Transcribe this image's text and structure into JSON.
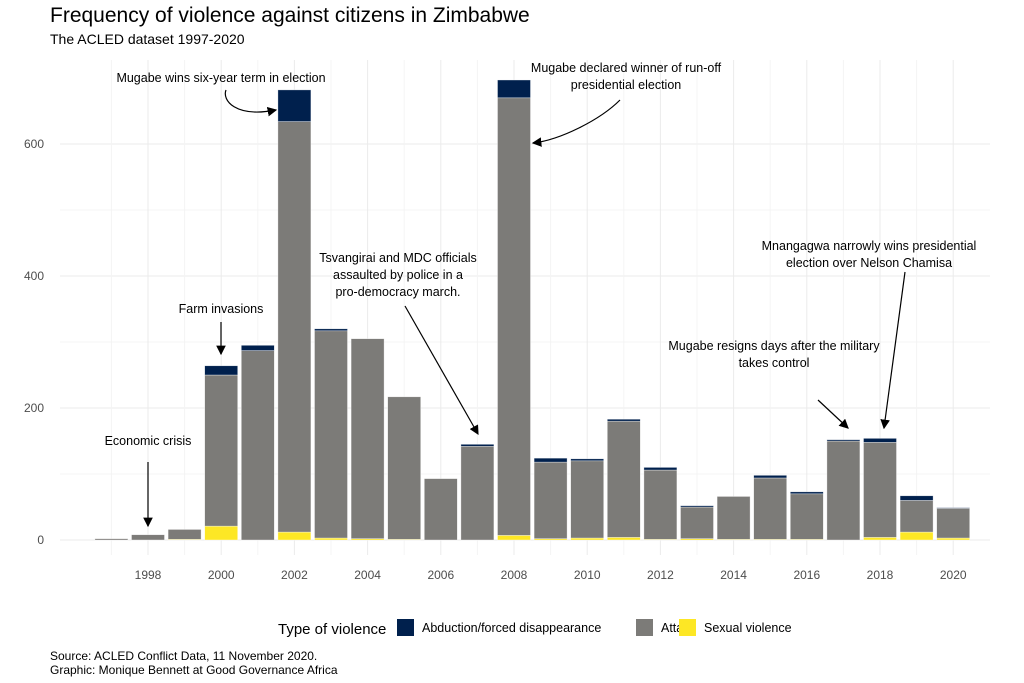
{
  "chart_data": {
    "type": "bar",
    "stacked": true,
    "title": "Frequency of violence against citizens in Zimbabwe",
    "subtitle": "The ACLED dataset 1997-2020",
    "xlabel": "",
    "ylabel": "",
    "x": [
      1997,
      1998,
      1999,
      2000,
      2001,
      2002,
      2003,
      2004,
      2005,
      2006,
      2007,
      2008,
      2009,
      2010,
      2011,
      2012,
      2013,
      2014,
      2015,
      2016,
      2017,
      2018,
      2019,
      2020
    ],
    "x_ticks": [
      "1998",
      "2000",
      "2002",
      "2004",
      "2006",
      "2008",
      "2010",
      "2012",
      "2014",
      "2016",
      "2018",
      "2020"
    ],
    "y_ticks": [
      "0",
      "200",
      "400",
      "600"
    ],
    "ylim": [
      0,
      700
    ],
    "grid": true,
    "legend_title": "Type of violence",
    "legend_position": "bottom",
    "series": [
      {
        "name": "Sexual violence",
        "color": "#FDE725",
        "values": [
          0,
          0,
          1,
          21,
          0,
          12,
          3,
          2,
          1,
          0,
          0,
          7,
          2,
          3,
          4,
          1,
          2,
          1,
          1,
          1,
          0,
          4,
          12,
          3
        ]
      },
      {
        "name": "Attack",
        "color": "#7C7B78",
        "values": [
          2,
          8,
          15,
          229,
          287,
          622,
          314,
          303,
          216,
          93,
          142,
          663,
          116,
          117,
          176,
          105,
          48,
          65,
          93,
          69,
          150,
          144,
          48,
          45
        ]
      },
      {
        "name": "Abduction/forced disappearance",
        "color": "#00204D",
        "values": [
          0,
          0,
          0,
          14,
          8,
          48,
          3,
          0,
          0,
          0,
          3,
          27,
          6,
          3,
          3,
          4,
          2,
          0,
          4,
          3,
          2,
          6,
          7,
          1
        ]
      }
    ],
    "legend_order": [
      "Abduction/forced disappearance",
      "Attack",
      "Sexual violence"
    ],
    "annotations": [
      {
        "lines": [
          "Economic crisis"
        ],
        "year": 1998
      },
      {
        "lines": [
          "Farm invasions"
        ],
        "year": 2000
      },
      {
        "lines": [
          "Mugabe wins six-year term in election"
        ],
        "year": 2002
      },
      {
        "lines": [
          "Tsvangirai and MDC officials",
          "assaulted by police in a",
          "pro-democracy march."
        ],
        "year": 2007
      },
      {
        "lines": [
          "Mugabe declared winner of run-off",
          "presidential election"
        ],
        "year": 2008
      },
      {
        "lines": [
          "Mugabe resigns days after the military",
          "takes control"
        ],
        "year": 2017
      },
      {
        "lines": [
          "Mnangagwa narrowly wins presidential",
          "election over Nelson Chamisa"
        ],
        "year": 2018
      }
    ]
  },
  "caption": {
    "source": "Source: ACLED Conflict Data, 11 November 2020.",
    "graphic": "Graphic: Monique Bennett at Good Governance Africa"
  }
}
